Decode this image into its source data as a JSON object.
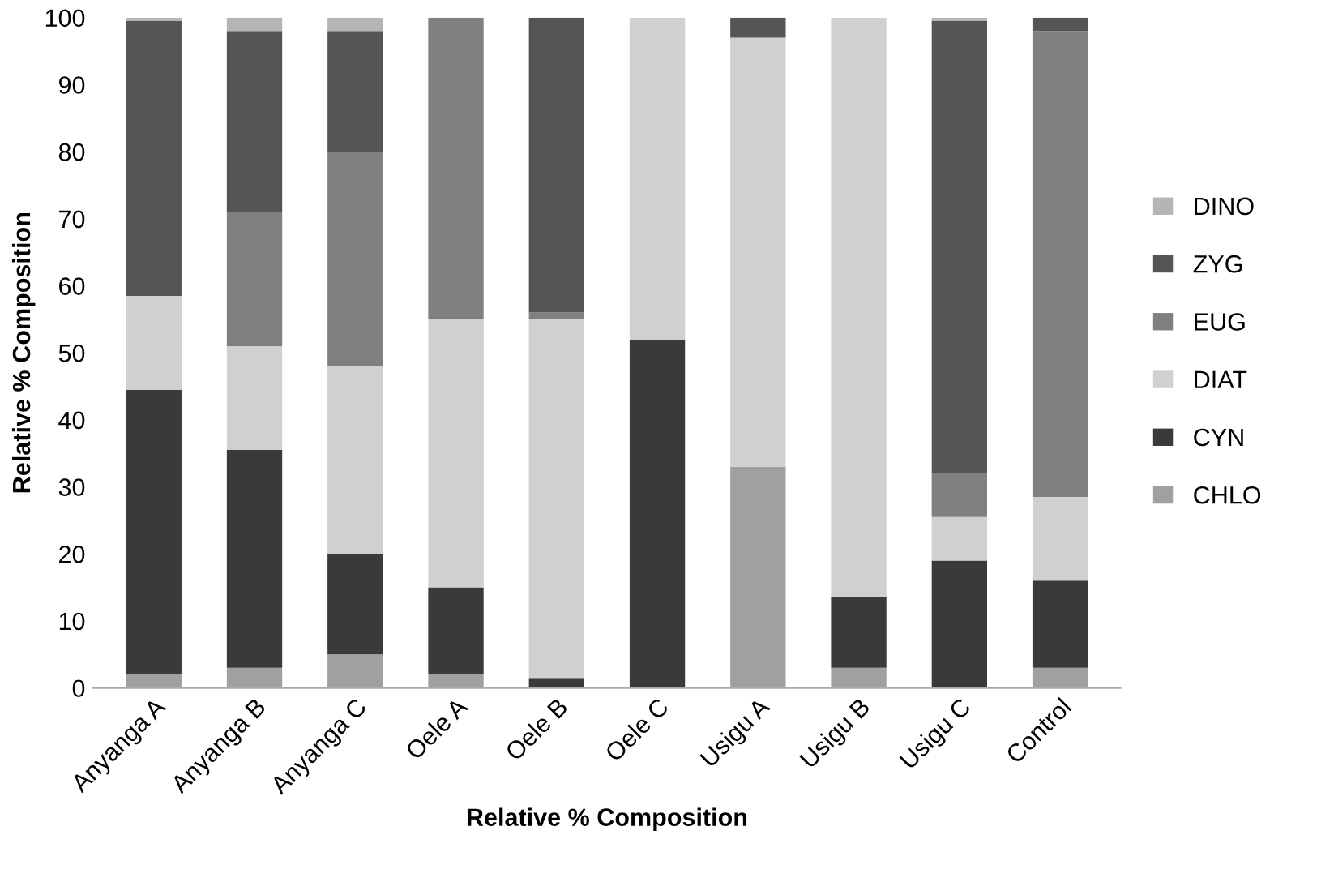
{
  "chart_data": {
    "type": "bar",
    "stacked": true,
    "xlabel": "Relative % Composition",
    "ylabel": "Relative % Composition",
    "categories": [
      "Anyanga A",
      "Anyanga B",
      "Anyanga C",
      "Oele A",
      "Oele B",
      "Oele C",
      "Usigu A",
      "Usigu B",
      "Usigu C",
      "Control"
    ],
    "series": [
      {
        "name": "CHLO",
        "color": "#a0a0a0",
        "values": [
          2,
          3,
          5,
          2,
          0,
          0,
          33,
          3,
          0,
          3
        ]
      },
      {
        "name": "CYN",
        "color": "#3a3a3a",
        "values": [
          42.5,
          32.5,
          15,
          13,
          1.5,
          52,
          0,
          10.5,
          19,
          13
        ]
      },
      {
        "name": "DIAT",
        "color": "#d0d0d0",
        "values": [
          14,
          15.5,
          28,
          40,
          53.5,
          48,
          64,
          86.5,
          6.5,
          12.5
        ]
      },
      {
        "name": "EUG",
        "color": "#808080",
        "values": [
          0,
          20,
          32,
          45,
          1,
          0,
          0,
          0,
          6.5,
          69.5
        ]
      },
      {
        "name": "ZYG",
        "color": "#555555",
        "values": [
          41,
          27,
          18,
          0,
          44,
          0,
          3,
          0,
          67.5,
          2
        ]
      },
      {
        "name": "DINO",
        "color": "#b5b5b5",
        "values": [
          0.5,
          2,
          2,
          0,
          0,
          0,
          0,
          0,
          0.5,
          0
        ]
      }
    ],
    "ylim": [
      0,
      100
    ],
    "yticks": [
      0,
      10,
      20,
      30,
      40,
      50,
      60,
      70,
      80,
      90,
      100
    ],
    "legend": "right"
  }
}
